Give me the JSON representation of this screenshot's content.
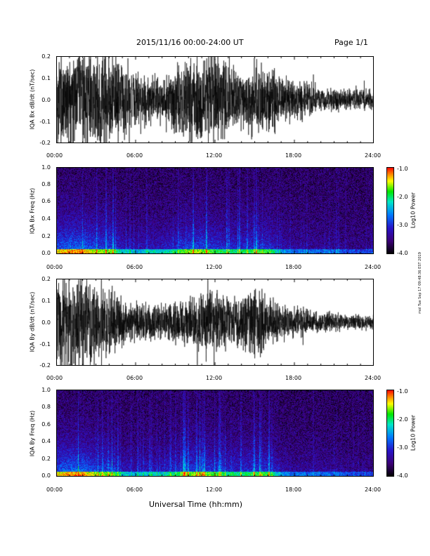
{
  "header": {
    "date_range": "2015/11/16  00:00-24:00 UT",
    "page": "Page 1/1"
  },
  "footer": {
    "xlabel": "Universal Time (hh:mm)",
    "stamp": "mol Tue Sep 17 09:48:36 EST 2019"
  },
  "x_ticks": [
    "00:00",
    "06:00",
    "12:00",
    "18:00",
    "24:00"
  ],
  "colorbar": {
    "label": "Log10 Power",
    "ticks": [
      "-1.0",
      "-2.0",
      "-3.0",
      "-4.0"
    ]
  },
  "chart_data": [
    {
      "type": "line",
      "ylabel": "IQA Bx dB/dt (nT/sec)",
      "xlim": [
        0,
        24
      ],
      "ylim": [
        -0.2,
        0.2
      ],
      "y_ticks": [
        "0.2",
        "0.1",
        "0.0",
        "-0.1",
        "-0.2"
      ],
      "envelope": {
        "x": [
          0,
          1,
          2,
          3,
          4,
          5,
          6,
          7,
          8,
          9,
          10,
          11,
          12,
          13,
          14,
          15,
          16,
          17,
          18,
          19,
          20,
          21,
          22,
          23,
          24
        ],
        "amplitude": [
          0.2,
          0.2,
          0.2,
          0.18,
          0.2,
          0.15,
          0.1,
          0.1,
          0.09,
          0.13,
          0.15,
          0.2,
          0.2,
          0.13,
          0.12,
          0.15,
          0.14,
          0.09,
          0.08,
          0.07,
          0.05,
          0.05,
          0.04,
          0.04,
          0.04
        ]
      }
    },
    {
      "type": "heatmap",
      "ylabel": "IQA Bx Freq (Hz)",
      "xlim": [
        0,
        24
      ],
      "ylim": [
        0,
        1.0
      ],
      "y_ticks": [
        "1.0",
        "0.8",
        "0.6",
        "0.4",
        "0.2",
        "0.0"
      ],
      "zlim": [
        -4.0,
        -1.0
      ],
      "activity": {
        "x": [
          0,
          1,
          2,
          3,
          4,
          5,
          6,
          7,
          8,
          9,
          10,
          11,
          12,
          13,
          14,
          15,
          16,
          17,
          18,
          19,
          20,
          21,
          22,
          23,
          24
        ],
        "level": [
          0.9,
          1.0,
          1.0,
          0.8,
          0.8,
          0.5,
          0.4,
          0.5,
          0.5,
          0.6,
          0.8,
          0.8,
          0.7,
          0.6,
          0.6,
          0.7,
          0.7,
          0.4,
          0.3,
          0.3,
          0.3,
          0.3,
          0.2,
          0.2,
          0.2
        ]
      }
    },
    {
      "type": "line",
      "ylabel": "IQA By dB/dt (nT/sec)",
      "xlim": [
        0,
        24
      ],
      "ylim": [
        -0.2,
        0.2
      ],
      "y_ticks": [
        "0.2",
        "0.1",
        "0.0",
        "-0.1",
        "-0.2"
      ],
      "envelope": {
        "x": [
          0,
          1,
          2,
          3,
          4,
          5,
          6,
          7,
          8,
          9,
          10,
          11,
          12,
          13,
          14,
          15,
          16,
          17,
          18,
          19,
          20,
          21,
          22,
          23,
          24
        ],
        "amplitude": [
          0.2,
          0.2,
          0.2,
          0.15,
          0.15,
          0.1,
          0.08,
          0.07,
          0.07,
          0.09,
          0.1,
          0.12,
          0.12,
          0.11,
          0.1,
          0.14,
          0.12,
          0.07,
          0.06,
          0.05,
          0.04,
          0.04,
          0.03,
          0.03,
          0.03
        ]
      }
    },
    {
      "type": "heatmap",
      "ylabel": "IQA By Freq (Hz)",
      "xlim": [
        0,
        24
      ],
      "ylim": [
        0,
        1.0
      ],
      "y_ticks": [
        "1.0",
        "0.8",
        "0.6",
        "0.4",
        "0.2",
        "0.0"
      ],
      "zlim": [
        -4.0,
        -1.0
      ],
      "activity": {
        "x": [
          0,
          1,
          2,
          3,
          4,
          5,
          6,
          7,
          8,
          9,
          10,
          11,
          12,
          13,
          14,
          15,
          16,
          17,
          18,
          19,
          20,
          21,
          22,
          23,
          24
        ],
        "level": [
          0.9,
          1.0,
          1.0,
          0.8,
          0.8,
          0.5,
          0.4,
          0.5,
          0.5,
          0.6,
          0.8,
          0.8,
          0.7,
          0.6,
          0.6,
          0.7,
          0.7,
          0.4,
          0.3,
          0.3,
          0.3,
          0.3,
          0.2,
          0.2,
          0.2
        ]
      }
    }
  ]
}
